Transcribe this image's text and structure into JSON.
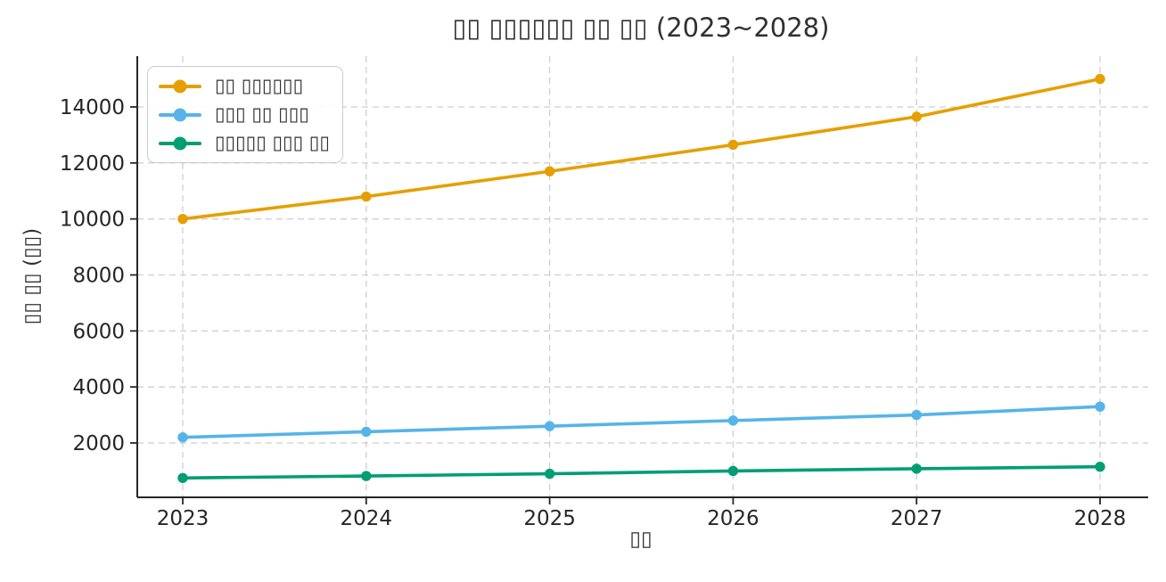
{
  "chart_data": {
    "type": "line",
    "title": "▯▯ ▯▯▯▯▯▯ ▯▯ ▯▯ (2023~2028)",
    "xlabel": "▯▯",
    "ylabel": "▯▯ ▯▯ (▯▯)",
    "x": [
      2023,
      2024,
      2025,
      2026,
      2027,
      2028
    ],
    "x_tick_labels": [
      "2023",
      "2024",
      "2025",
      "2026",
      "2027",
      "2028"
    ],
    "y_ticks": [
      2000,
      4000,
      6000,
      8000,
      10000,
      12000,
      14000
    ],
    "y_tick_labels": [
      "2000",
      "4000",
      "6000",
      "8000",
      "10000",
      "12000",
      "14000"
    ],
    "ylim": [
      60,
      15810
    ],
    "grid": true,
    "grid_style": "dashed",
    "legend_position": "upper-left",
    "series": [
      {
        "id": "series-1",
        "name": "▯▯ ▯▯▯▯▯▯",
        "color": "#E69F00",
        "marker": "circle",
        "values": [
          10000,
          10800,
          11700,
          12650,
          13650,
          15000
        ]
      },
      {
        "id": "series-2",
        "name": "▯▯▯ ▯▯ ▯▯▯",
        "color": "#56B4E9",
        "marker": "circle",
        "values": [
          2200,
          2400,
          2600,
          2800,
          3000,
          3300
        ]
      },
      {
        "id": "series-3",
        "name": "▯▯▯▯▯ ▯▯▯ ▯▯",
        "color": "#009E73",
        "marker": "circle",
        "values": [
          750,
          820,
          900,
          1000,
          1080,
          1150
        ]
      }
    ],
    "colors": {
      "text": "#303030",
      "spine": "#262626",
      "grid": "#cfcfcf",
      "background": "#ffffff"
    }
  }
}
